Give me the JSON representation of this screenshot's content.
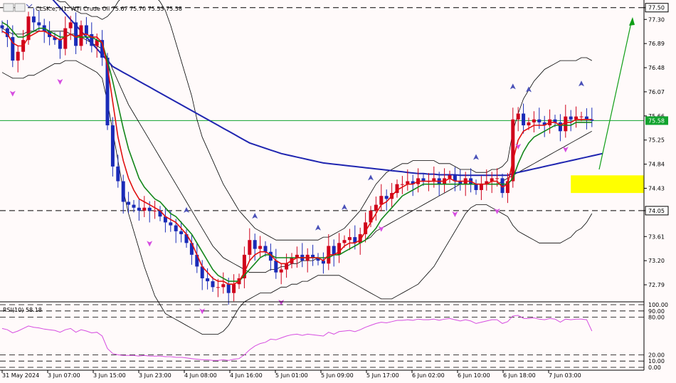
{
  "header": {
    "title": "CLSK.e, H1: WTI Crude Oil 75.67 75.70 75.53 75.58"
  },
  "colors": {
    "background": "#fffafa",
    "bull_candle": "#d0021b",
    "bear_candle": "#1a2bb8",
    "ema_fast": "#e01010",
    "ema_slow": "#13861a",
    "ma_long": "#1f25b0",
    "bollinger": "#000000",
    "current_price_line": "#11a32e",
    "zone": "#ffff00",
    "rsi": "#d64de0",
    "fractal_up": "#4a50b8",
    "fractal_down": "#d64de0",
    "arrow": "#0f9e16"
  },
  "chart_data": {
    "type": "candlestick",
    "symbol": "CLSK.e",
    "timeframe": "H1",
    "instrument": "WTI Crude Oil",
    "ohlc": {
      "open": 75.67,
      "high": 75.7,
      "low": 75.53,
      "close": 75.58
    },
    "ylim": [
      72.5,
      77.63
    ],
    "y_ticks": [
      "77.50",
      "77.30",
      "76.89",
      "76.48",
      "76.07",
      "75.66",
      "75.25",
      "74.84",
      "74.43",
      "74.05",
      "73.61",
      "73.20",
      "72.79"
    ],
    "x_ticks": [
      "31 May 2024",
      "3 Jun 07:00",
      "3 Jun 15:00",
      "3 Jun 23:00",
      "4 Jun 08:00",
      "4 Jun 16:00",
      "5 Jun 01:00",
      "5 Jun 09:00",
      "5 Jun 17:00",
      "6 Jun 02:00",
      "6 Jun 10:00",
      "6 Jun 18:00",
      "7 Jun 03:00"
    ],
    "current_price": 75.58,
    "current_price_label": "75.58",
    "horizontal_levels": [
      77.5,
      74.05
    ],
    "horizontal_level_labels": [
      "77.50",
      "74.05"
    ],
    "zone": {
      "y_top": 74.65,
      "y_bottom": 74.35,
      "from_bar": 108
    },
    "close": [
      77.15,
      77.0,
      76.6,
      76.75,
      76.95,
      77.35,
      77.25,
      77.2,
      77.1,
      77.0,
      76.95,
      76.8,
      77.15,
      77.25,
      76.85,
      77.2,
      77.05,
      76.85,
      76.95,
      76.65,
      75.5,
      74.8,
      74.55,
      74.2,
      74.15,
      74.1,
      74.05,
      74.1,
      74.05,
      74.05,
      73.95,
      73.85,
      73.8,
      73.7,
      73.65,
      73.5,
      73.3,
      73.1,
      72.9,
      72.85,
      72.75,
      72.75,
      72.8,
      72.65,
      72.8,
      72.9,
      73.3,
      73.55,
      73.4,
      73.45,
      73.35,
      73.2,
      73.0,
      73.05,
      73.15,
      73.25,
      73.3,
      73.2,
      73.3,
      73.25,
      73.2,
      73.15,
      73.45,
      73.3,
      73.5,
      73.55,
      73.6,
      73.5,
      73.65,
      73.85,
      74.05,
      74.15,
      74.3,
      74.25,
      74.35,
      74.5,
      74.5,
      74.55,
      74.5,
      74.6,
      74.55,
      74.55,
      74.6,
      74.5,
      74.6,
      74.65,
      74.55,
      74.5,
      74.6,
      74.5,
      74.4,
      74.5,
      74.55,
      74.6,
      74.6,
      74.35,
      74.55,
      75.6,
      75.7,
      75.5,
      75.55,
      75.6,
      75.55,
      75.5,
      75.6,
      75.55,
      75.4,
      75.65,
      75.6,
      75.65,
      75.65,
      75.6,
      75.58
    ],
    "ema_fast": [
      77.1,
      77.05,
      76.9,
      76.85,
      76.85,
      77.0,
      77.05,
      77.1,
      77.1,
      77.05,
      77.0,
      76.95,
      77.0,
      77.05,
      77.0,
      77.05,
      77.05,
      77.0,
      77.0,
      76.9,
      76.5,
      75.9,
      75.3,
      74.9,
      74.6,
      74.4,
      74.25,
      74.2,
      74.15,
      74.1,
      74.05,
      73.95,
      73.9,
      73.85,
      73.75,
      73.65,
      73.5,
      73.3,
      73.1,
      73.0,
      72.9,
      72.85,
      72.85,
      72.8,
      72.8,
      72.85,
      73.0,
      73.2,
      73.3,
      73.35,
      73.35,
      73.3,
      73.2,
      73.15,
      73.15,
      73.2,
      73.25,
      73.25,
      73.25,
      73.25,
      73.25,
      73.2,
      73.3,
      73.3,
      73.35,
      73.45,
      73.5,
      73.5,
      73.55,
      73.7,
      73.85,
      74.0,
      74.15,
      74.2,
      74.3,
      74.4,
      74.45,
      74.5,
      74.5,
      74.55,
      74.55,
      74.55,
      74.55,
      74.55,
      74.55,
      74.6,
      74.55,
      74.55,
      74.55,
      74.55,
      74.5,
      74.5,
      74.5,
      74.55,
      74.55,
      74.45,
      74.5,
      74.9,
      75.25,
      75.4,
      75.45,
      75.5,
      75.5,
      75.5,
      75.55,
      75.55,
      75.5,
      75.55,
      75.55,
      75.6,
      75.6,
      75.6,
      75.6
    ],
    "ema_slow": [
      77.25,
      77.2,
      77.1,
      77.0,
      77.0,
      77.05,
      77.1,
      77.15,
      77.15,
      77.1,
      77.05,
      77.0,
      77.0,
      77.05,
      77.0,
      77.0,
      77.0,
      77.0,
      76.95,
      76.9,
      76.6,
      76.25,
      75.85,
      75.45,
      75.1,
      74.85,
      74.6,
      74.45,
      74.35,
      74.25,
      74.2,
      74.1,
      74.0,
      73.95,
      73.85,
      73.75,
      73.65,
      73.5,
      73.35,
      73.2,
      73.05,
      72.95,
      72.9,
      72.85,
      72.85,
      72.85,
      72.95,
      73.05,
      73.15,
      73.25,
      73.3,
      73.3,
      73.25,
      73.25,
      73.25,
      73.25,
      73.25,
      73.25,
      73.25,
      73.25,
      73.25,
      73.25,
      73.25,
      73.3,
      73.3,
      73.35,
      73.4,
      73.45,
      73.5,
      73.55,
      73.65,
      73.75,
      73.9,
      74.0,
      74.1,
      74.2,
      74.3,
      74.35,
      74.4,
      74.45,
      74.5,
      74.5,
      74.5,
      74.5,
      74.5,
      74.5,
      74.5,
      74.5,
      74.5,
      74.5,
      74.5,
      74.5,
      74.5,
      74.5,
      74.5,
      74.5,
      74.5,
      74.6,
      74.85,
      75.05,
      75.2,
      75.3,
      75.35,
      75.4,
      75.45,
      75.5,
      75.5,
      75.5,
      75.5,
      75.55,
      75.55,
      75.55,
      75.55
    ],
    "ma_long": [
      78.6,
      78.5,
      78.4,
      78.3,
      78.2,
      78.1,
      78.0,
      77.9,
      77.8,
      77.7,
      77.6,
      77.5,
      77.4,
      77.3,
      77.2,
      77.1,
      77.0,
      76.9,
      76.8,
      76.7,
      76.6,
      76.5,
      76.45,
      76.4,
      76.35,
      76.3,
      76.25,
      76.2,
      76.15,
      76.1,
      76.05,
      76.0,
      75.95,
      75.9,
      75.85,
      75.8,
      75.75,
      75.7,
      75.65,
      75.6,
      75.55,
      75.5,
      75.45,
      75.4,
      75.35,
      75.3,
      75.25,
      75.2,
      75.17,
      75.14,
      75.11,
      75.08,
      75.05,
      75.02,
      75.0,
      74.98,
      74.96,
      74.94,
      74.92,
      74.9,
      74.88,
      74.86,
      74.85,
      74.84,
      74.83,
      74.82,
      74.81,
      74.8,
      74.79,
      74.78,
      74.77,
      74.76,
      74.75,
      74.74,
      74.73,
      74.72,
      74.71,
      74.7,
      74.69,
      74.68,
      74.68,
      74.67,
      74.67,
      74.66,
      74.66,
      74.66,
      74.66,
      74.65,
      74.65,
      74.65,
      74.65,
      74.65,
      74.65,
      74.65,
      74.65,
      74.65,
      74.65,
      74.68,
      74.7,
      74.72,
      74.74,
      74.76,
      74.78,
      74.8,
      74.82,
      74.84,
      74.86,
      74.88,
      74.9,
      74.92,
      74.94,
      74.96,
      74.98,
      75.0,
      75.02
    ],
    "bollinger_upper": [
      77.9,
      77.9,
      77.85,
      77.85,
      77.8,
      77.8,
      77.8,
      77.75,
      77.7,
      77.7,
      77.65,
      77.6,
      77.6,
      77.5,
      77.45,
      77.4,
      77.4,
      77.35,
      77.35,
      77.3,
      77.35,
      77.45,
      77.6,
      77.7,
      77.75,
      77.8,
      77.8,
      77.8,
      77.75,
      77.7,
      77.6,
      77.45,
      77.2,
      76.9,
      76.6,
      76.3,
      76.0,
      75.6,
      75.3,
      75.1,
      74.9,
      74.7,
      74.5,
      74.35,
      74.2,
      74.05,
      73.95,
      73.85,
      73.75,
      73.7,
      73.65,
      73.6,
      73.55,
      73.55,
      73.55,
      73.55,
      73.55,
      73.55,
      73.55,
      73.55,
      73.55,
      73.6,
      73.6,
      73.65,
      73.7,
      73.75,
      73.85,
      73.95,
      74.05,
      74.2,
      74.35,
      74.5,
      74.6,
      74.7,
      74.75,
      74.8,
      74.85,
      74.85,
      74.9,
      74.9,
      74.9,
      74.9,
      74.9,
      74.85,
      74.85,
      74.85,
      74.8,
      74.75,
      74.75,
      74.75,
      74.7,
      74.7,
      74.7,
      74.75,
      74.75,
      74.8,
      74.9,
      75.4,
      75.7,
      75.95,
      76.1,
      76.25,
      76.35,
      76.45,
      76.5,
      76.55,
      76.6,
      76.6,
      76.6,
      76.6,
      76.65,
      76.65,
      76.6
    ],
    "bollinger_lower": [
      76.4,
      76.35,
      76.3,
      76.3,
      76.3,
      76.35,
      76.35,
      76.4,
      76.45,
      76.5,
      76.55,
      76.55,
      76.6,
      76.6,
      76.6,
      76.55,
      76.5,
      76.45,
      76.4,
      76.3,
      75.9,
      75.4,
      74.9,
      74.4,
      74.0,
      73.7,
      73.4,
      73.1,
      72.85,
      72.6,
      72.45,
      72.3,
      72.25,
      72.2,
      72.15,
      72.1,
      72.05,
      72.0,
      71.95,
      71.95,
      71.95,
      71.95,
      72.0,
      72.1,
      72.25,
      72.4,
      72.5,
      72.55,
      72.6,
      72.65,
      72.65,
      72.65,
      72.7,
      72.75,
      72.75,
      72.8,
      72.8,
      72.85,
      72.85,
      72.9,
      72.95,
      72.95,
      72.95,
      72.95,
      72.95,
      72.9,
      72.85,
      72.8,
      72.75,
      72.7,
      72.65,
      72.6,
      72.55,
      72.55,
      72.55,
      72.6,
      72.65,
      72.7,
      72.75,
      72.8,
      72.9,
      73.0,
      73.1,
      73.25,
      73.4,
      73.55,
      73.7,
      73.85,
      74.0,
      74.1,
      74.15,
      74.15,
      74.15,
      74.1,
      74.05,
      74.0,
      73.95,
      73.8,
      73.7,
      73.65,
      73.6,
      73.55,
      73.5,
      73.5,
      73.5,
      73.5,
      73.5,
      73.55,
      73.6,
      73.7,
      73.75,
      73.85,
      74.0
    ],
    "bollinger_mid": [
      77.15,
      77.1,
      77.05,
      77.05,
      77.05,
      77.1,
      77.1,
      77.1,
      77.1,
      77.1,
      77.1,
      77.1,
      77.1,
      77.05,
      77.05,
      77.0,
      76.95,
      76.9,
      76.85,
      76.8,
      76.65,
      76.45,
      76.25,
      76.05,
      75.85,
      75.7,
      75.55,
      75.4,
      75.25,
      75.1,
      74.95,
      74.8,
      74.65,
      74.5,
      74.35,
      74.2,
      74.05,
      73.9,
      73.75,
      73.6,
      73.45,
      73.35,
      73.25,
      73.2,
      73.15,
      73.1,
      73.05,
      73.0,
      73.0,
      73.0,
      73.0,
      73.05,
      73.05,
      73.1,
      73.1,
      73.15,
      73.15,
      73.2,
      73.2,
      73.2,
      73.25,
      73.25,
      73.25,
      73.3,
      73.3,
      73.35,
      73.4,
      73.45,
      73.5,
      73.55,
      73.6,
      73.7,
      73.75,
      73.8,
      73.85,
      73.9,
      73.95,
      74.0,
      74.05,
      74.1,
      74.15,
      74.2,
      74.25,
      74.3,
      74.35,
      74.4,
      74.45,
      74.5,
      74.5,
      74.5,
      74.5,
      74.5,
      74.5,
      74.5,
      74.5,
      74.55,
      74.6,
      74.65,
      74.7,
      74.75,
      74.8,
      74.85,
      74.9,
      74.95,
      75.0,
      75.05,
      75.1,
      75.15,
      75.2,
      75.25,
      75.3,
      75.35,
      75.4
    ],
    "fractals_up": [
      5,
      13,
      35,
      48,
      60,
      65,
      70,
      90,
      97,
      100,
      110
    ],
    "fractals_down": [
      2,
      11,
      28,
      38,
      53,
      72,
      86,
      94,
      98,
      107
    ],
    "rsi": {
      "label": "RSI(10) 58.18",
      "period": 10,
      "value": 58.18,
      "levels": [
        100,
        90,
        80,
        20,
        10,
        0
      ],
      "level_labels": [
        "100.00",
        "90.00",
        "80.00",
        "20.00",
        "10.00",
        "0.00"
      ],
      "values": [
        62,
        60,
        55,
        58,
        62,
        66,
        64,
        63,
        61,
        60,
        59,
        56,
        60,
        62,
        56,
        60,
        58,
        55,
        56,
        50,
        30,
        22,
        20,
        19,
        19,
        19,
        18,
        19,
        18,
        18,
        18,
        17,
        17,
        16,
        16,
        15,
        14,
        13,
        12,
        12,
        11,
        11,
        12,
        11,
        13,
        14,
        20,
        28,
        34,
        38,
        40,
        45,
        44,
        47,
        50,
        52,
        53,
        51,
        53,
        52,
        51,
        50,
        56,
        53,
        57,
        58,
        59,
        57,
        60,
        64,
        67,
        70,
        72,
        71,
        73,
        75,
        75,
        76,
        75,
        77,
        76,
        76,
        77,
        75,
        77,
        78,
        76,
        74,
        76,
        74,
        70,
        72,
        74,
        76,
        76,
        70,
        73,
        82,
        83,
        78,
        78,
        79,
        77,
        76,
        78,
        77,
        72,
        77,
        76,
        77,
        77,
        76,
        58
      ]
    }
  }
}
